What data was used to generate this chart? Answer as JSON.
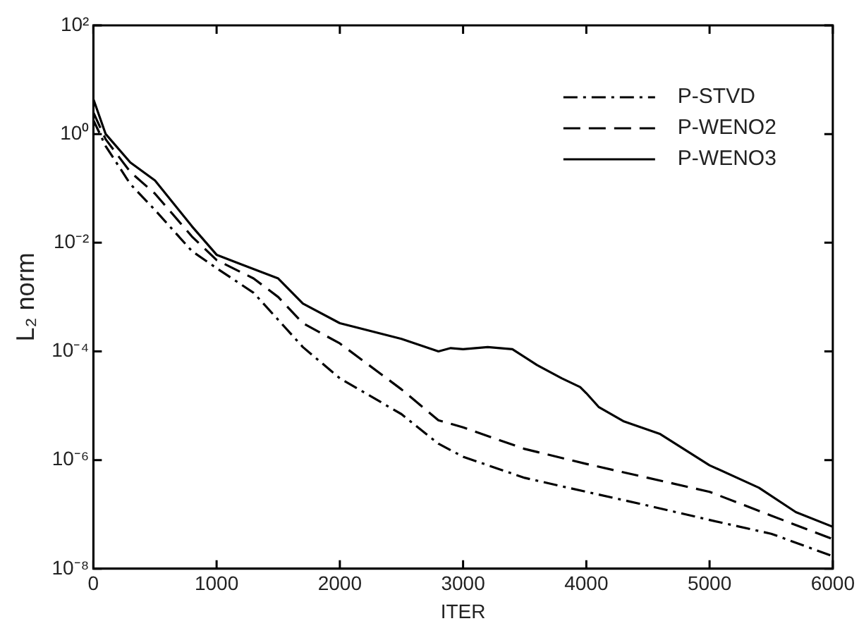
{
  "chart_data": {
    "type": "line",
    "xlabel": "ITER",
    "ylabel": "L₂ norm",
    "log": "y",
    "xlim": [
      0,
      6000
    ],
    "xticks": [
      0,
      1000,
      2000,
      3000,
      4000,
      5000,
      6000
    ],
    "ylim": [
      1e-08,
      100
    ],
    "yticks": [
      {
        "value": 1e-08,
        "label": "10⁻⁸"
      },
      {
        "value": 1e-06,
        "label": "10⁻⁶"
      },
      {
        "value": 0.0001,
        "label": "10⁻⁴"
      },
      {
        "value": 0.01,
        "label": "10⁻²"
      },
      {
        "value": 1,
        "label": "10⁰"
      },
      {
        "value": 100,
        "label": "10²"
      }
    ],
    "grid": false,
    "legend": "top right",
    "marker": "none",
    "series": [
      {
        "name": "P-STVD",
        "color": "#000000",
        "line_style": "dashdot",
        "x": [
          0,
          100,
          300,
          500,
          800,
          1000,
          1300,
          1500,
          1700,
          2000,
          2500,
          2800,
          3000,
          3500,
          4000,
          4500,
          5000,
          5500,
          6000
        ],
        "values": [
          1.8,
          0.6,
          0.12,
          0.04,
          0.007,
          0.0034,
          0.0012,
          0.00038,
          0.00012,
          3.2e-05,
          7e-06,
          2e-06,
          1.15e-06,
          4.7e-07,
          2.6e-07,
          1.45e-07,
          7.9e-08,
          4.4e-08,
          1.7e-08
        ]
      },
      {
        "name": "P-WENO2",
        "color": "#000000",
        "line_style": "dashed",
        "x": [
          0,
          100,
          300,
          500,
          800,
          1000,
          1300,
          1500,
          1700,
          2000,
          2500,
          2800,
          3000,
          3500,
          4000,
          4500,
          5000,
          5500,
          6000
        ],
        "values": [
          2.5,
          0.8,
          0.2,
          0.08,
          0.013,
          0.0048,
          0.0022,
          0.001,
          0.00033,
          0.00014,
          2e-05,
          5.4e-06,
          4e-06,
          1.6e-06,
          8.5e-07,
          4.7e-07,
          2.6e-07,
          9.5e-08,
          3.5e-08
        ]
      },
      {
        "name": "P-WENO3",
        "color": "#000000",
        "line_style": "solid",
        "x": [
          0,
          100,
          300,
          500,
          800,
          1000,
          1200,
          1500,
          1700,
          2000,
          2500,
          2800,
          2900,
          3000,
          3200,
          3400,
          3600,
          3800,
          3950,
          4000,
          4100,
          4300,
          4600,
          5000,
          5400,
          5700,
          6000
        ],
        "values": [
          4.4,
          1.0,
          0.3,
          0.14,
          0.02,
          0.006,
          0.004,
          0.0022,
          0.00076,
          0.00033,
          0.00017,
          0.0001,
          0.000115,
          0.00011,
          0.00012,
          0.00011,
          5.6e-05,
          3.2e-05,
          2.2e-05,
          1.7e-05,
          9.5e-06,
          5.2e-06,
          3e-06,
          8e-07,
          3.1e-07,
          1.1e-07,
          5.9e-08
        ]
      }
    ]
  }
}
